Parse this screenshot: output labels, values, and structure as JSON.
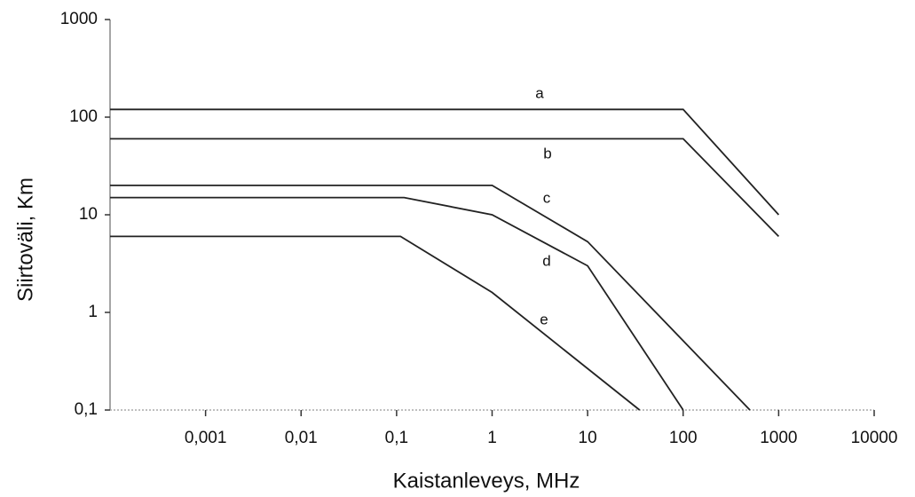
{
  "chart_data": {
    "type": "line",
    "x_label": "Kaistanleveys, MHz",
    "y_label": "Siirtoväli, Km",
    "log_x": true,
    "log_y": true,
    "xlim": [
      0.0001,
      10000
    ],
    "ylim": [
      0.1,
      1000
    ],
    "xticks": [
      {
        "value": 0.001,
        "label": "0,001"
      },
      {
        "value": 0.01,
        "label": "0,01"
      },
      {
        "value": 0.1,
        "label": "0,1"
      },
      1,
      10,
      100,
      1000,
      10000
    ],
    "yticks": [
      {
        "value": 0.1,
        "label": "0,1"
      },
      1,
      10,
      100,
      1000
    ],
    "series": [
      {
        "name": "a",
        "color": "#222222",
        "x": [
          0.0001,
          100,
          1000
        ],
        "values": [
          120,
          120,
          10
        ]
      },
      {
        "name": "b",
        "color": "#222222",
        "x": [
          0.0001,
          100,
          1000
        ],
        "values": [
          60,
          60,
          6
        ]
      },
      {
        "name": "c",
        "color": "#222222",
        "x": [
          0.0001,
          1,
          10,
          500
        ],
        "values": [
          20,
          20,
          5.3,
          0.1
        ]
      },
      {
        "name": "d",
        "color": "#222222",
        "x": [
          0.0001,
          0.12,
          1,
          10,
          100
        ],
        "values": [
          15,
          15,
          10,
          3,
          0.1
        ]
      },
      {
        "name": "e",
        "color": "#222222",
        "x": [
          0.0001,
          0.11,
          1,
          35
        ],
        "values": [
          6,
          6,
          1.6,
          0.1
        ]
      }
    ]
  }
}
